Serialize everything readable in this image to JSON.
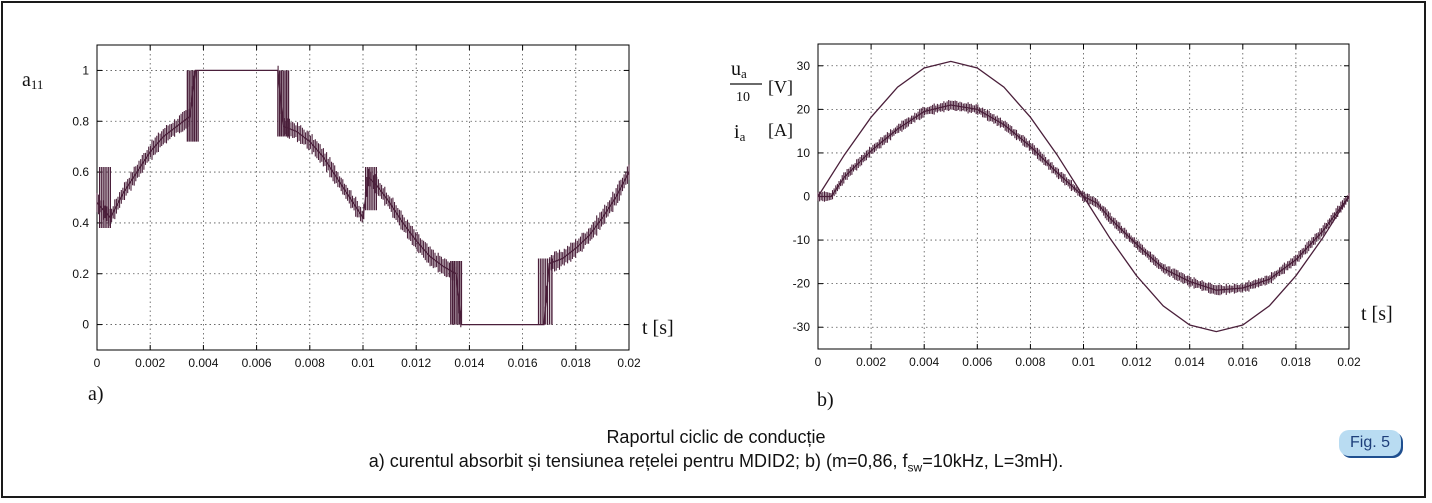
{
  "caption": {
    "title": "Raportul ciclic de conducție",
    "line_before_sub": "a) curentul absorbit și tensiunea rețelei pentru MDID2; b) (m=0,86, f",
    "sub": "sw",
    "line_after_sub": "=10kHz, L=3mH).",
    "badge": "Fig. 5"
  },
  "chart_data": [
    {
      "type": "line",
      "panel_label": "a)",
      "ylabel_main": "a",
      "ylabel_sub": "11",
      "xlabel": "t [s]",
      "xlim": [
        0,
        0.02
      ],
      "ylim": [
        -0.1,
        1.1
      ],
      "x_ticks": [
        "0",
        "0.002",
        "0.004",
        "0.006",
        "0.008",
        "0.01",
        "0.012",
        "0.014",
        "0.016",
        "0.018",
        "0.02"
      ],
      "y_ticks": [
        "0",
        "0.2",
        "0.4",
        "0.6",
        "0.8",
        "1"
      ],
      "grid": true,
      "color": "#4a1f3a",
      "series": [
        {
          "x": [
            0,
            0.0005,
            0.001,
            0.0015,
            0.002,
            0.0025,
            0.003,
            0.0035,
            0.0037,
            0.004,
            0.005,
            0.006,
            0.0068,
            0.007,
            0.0075,
            0.008,
            0.0085,
            0.009,
            0.0095,
            0.01,
            0.0102,
            0.0105,
            0.011,
            0.0115,
            0.012,
            0.0125,
            0.013,
            0.0135,
            0.0137,
            0.014,
            0.015,
            0.016,
            0.0168,
            0.017,
            0.0175,
            0.018,
            0.0185,
            0.019,
            0.0195,
            0.02
          ],
          "y": [
            0.48,
            0.42,
            0.52,
            0.6,
            0.68,
            0.74,
            0.78,
            0.82,
            1.0,
            1.0,
            1.0,
            1.0,
            1.0,
            0.78,
            0.76,
            0.72,
            0.66,
            0.58,
            0.5,
            0.42,
            0.58,
            0.55,
            0.48,
            0.4,
            0.33,
            0.27,
            0.23,
            0.2,
            0.0,
            0.0,
            0.0,
            0.0,
            0.0,
            0.24,
            0.26,
            0.3,
            0.35,
            0.42,
            0.5,
            0.6
          ]
        }
      ]
    },
    {
      "type": "line",
      "panel_label": "b)",
      "ylabel_u": "u",
      "ylabel_u_sub": "a",
      "ylabel_den": "10",
      "ylabel_v_unit": "[V]",
      "ylabel_i": "i",
      "ylabel_i_sub": "a",
      "ylabel_a_unit": "[A]",
      "xlabel": "t [s]",
      "xlim": [
        0,
        0.02
      ],
      "ylim": [
        -35,
        35
      ],
      "x_ticks": [
        "0",
        "0.002",
        "0.004",
        "0.006",
        "0.008",
        "0.01",
        "0.012",
        "0.014",
        "0.016",
        "0.018",
        "0.02"
      ],
      "y_ticks": [
        "-30",
        "-20",
        "-10",
        "0",
        "10",
        "20",
        "30"
      ],
      "grid": true,
      "color": "#4a1f3a",
      "series": [
        {
          "x": [
            0,
            0.001,
            0.002,
            0.003,
            0.004,
            0.005,
            0.006,
            0.007,
            0.008,
            0.009,
            0.01,
            0.011,
            0.012,
            0.013,
            0.014,
            0.015,
            0.016,
            0.017,
            0.018,
            0.019,
            0.02
          ],
          "y": [
            0,
            9.6,
            18.2,
            25.1,
            29.5,
            31.0,
            29.5,
            25.1,
            18.2,
            9.6,
            0,
            -9.6,
            -18.2,
            -25.1,
            -29.5,
            -31.0,
            -29.5,
            -25.1,
            -18.2,
            -9.6,
            0
          ]
        },
        {
          "x": [
            0,
            0.0005,
            0.001,
            0.002,
            0.003,
            0.004,
            0.005,
            0.006,
            0.007,
            0.008,
            0.009,
            0.01,
            0.0105,
            0.011,
            0.012,
            0.013,
            0.014,
            0.015,
            0.016,
            0.017,
            0.018,
            0.019,
            0.02
          ],
          "y": [
            0,
            0,
            4.5,
            10.5,
            15.5,
            19.5,
            21.0,
            20.0,
            16.5,
            11.5,
            5.5,
            0,
            -1.5,
            -5.0,
            -11.0,
            -16.5,
            -19.5,
            -21.5,
            -21.0,
            -19.0,
            -14.5,
            -8.0,
            0
          ]
        }
      ]
    }
  ]
}
